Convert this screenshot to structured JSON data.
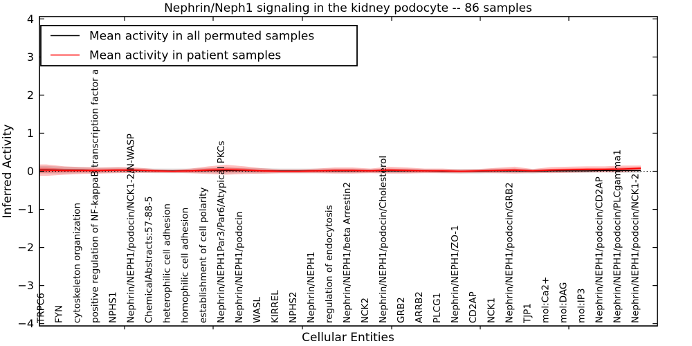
{
  "chart_data": {
    "type": "line",
    "title": "Nephrin/Neph1 signaling in the kidney podocyte -- 86 samples",
    "xlabel": "Cellular Entities",
    "ylabel": "Inferred Activity",
    "ylim": [
      -4,
      4
    ],
    "yticks": [
      "4",
      "3",
      "2",
      "1",
      "0",
      "−1",
      "−2",
      "−3",
      "−4"
    ],
    "grid": false,
    "legend_position": "upper left",
    "zero_reference_line": true,
    "background_color": "#ffffff",
    "categories": [
      "TRPC6",
      "FYN",
      "cytoskeleton organization",
      "positive regulation of NF-kappaB transcription factor a",
      "NPHS1",
      "Nephrin/NEPH1/podocin/NCK1-2/N-WASP",
      "ChemicalAbstracts:57-88-5",
      "heterophilic cell adhesion",
      "homophilic cell adhesion",
      "establishment of cell polarity",
      "Nephrin/NEPH1Par3/Par6/Atypical PKCs",
      "Nephrin/NEPH1/podocin",
      "WASL",
      "KIRREL",
      "NPHS2",
      "Nephrin/NEPH1",
      "regulation of endocytosis",
      "Nephrin/NEPH1/beta Arrestin2",
      "NCK2",
      "Nephrin/NEPH1/podocin/Cholesterol",
      "GRB2",
      "ARRB2",
      "PLCG1",
      "Nephrin/NEPH1/ZO-1",
      "CD2AP",
      "NCK1",
      "Nephrin/NEPH1/podocin/GRB2",
      "TJP1",
      "mol:Ca2+",
      "mol:DAG",
      "mol:IP3",
      "Nephrin/NEPH1/podocin/CD2AP",
      "Nephrin/NEPH1/podocin/PLCgamma1",
      "Nephrin/NEPH1/podocin/NCK1-2"
    ],
    "series": [
      {
        "name": "Mean activity in all permuted samples",
        "color": "#000000",
        "band_color": "#aaaaaa",
        "values": [
          0.04,
          0.03,
          0.03,
          0.02,
          0.03,
          0.02,
          0.01,
          0.01,
          0.01,
          0.02,
          0.02,
          0.02,
          0.01,
          0.01,
          0.01,
          0.01,
          0.01,
          0.01,
          0.01,
          0.01,
          0.01,
          0.01,
          0.0,
          0.0,
          0.0,
          0.01,
          0.01,
          0.0,
          0.01,
          0.01,
          0.01,
          0.02,
          0.02,
          0.02
        ],
        "ci_half_width": [
          0.1,
          0.09,
          0.08,
          0.07,
          0.07,
          0.06,
          0.06,
          0.06,
          0.06,
          0.07,
          0.08,
          0.07,
          0.07,
          0.06,
          0.06,
          0.06,
          0.06,
          0.06,
          0.05,
          0.06,
          0.06,
          0.05,
          0.05,
          0.06,
          0.06,
          0.06,
          0.06,
          0.06,
          0.05,
          0.05,
          0.05,
          0.05,
          0.06,
          0.06
        ]
      },
      {
        "name": "Mean activity in patient samples",
        "color": "#ff0000",
        "band_color": "#f08080",
        "values": [
          0.03,
          0.02,
          0.02,
          0.02,
          0.03,
          0.03,
          0.01,
          0.0,
          0.01,
          0.03,
          0.04,
          0.03,
          0.01,
          0.0,
          0.0,
          0.01,
          0.02,
          0.02,
          0.01,
          0.03,
          0.02,
          0.01,
          0.01,
          0.0,
          0.01,
          0.02,
          0.03,
          0.01,
          0.03,
          0.04,
          0.05,
          0.05,
          0.06,
          0.08
        ],
        "ci_half_width": [
          0.15,
          0.11,
          0.09,
          0.08,
          0.08,
          0.07,
          0.05,
          0.04,
          0.06,
          0.1,
          0.13,
          0.1,
          0.07,
          0.05,
          0.05,
          0.06,
          0.08,
          0.08,
          0.06,
          0.09,
          0.08,
          0.06,
          0.06,
          0.05,
          0.05,
          0.07,
          0.09,
          0.05,
          0.08,
          0.08,
          0.08,
          0.08,
          0.09,
          0.07
        ]
      }
    ]
  }
}
